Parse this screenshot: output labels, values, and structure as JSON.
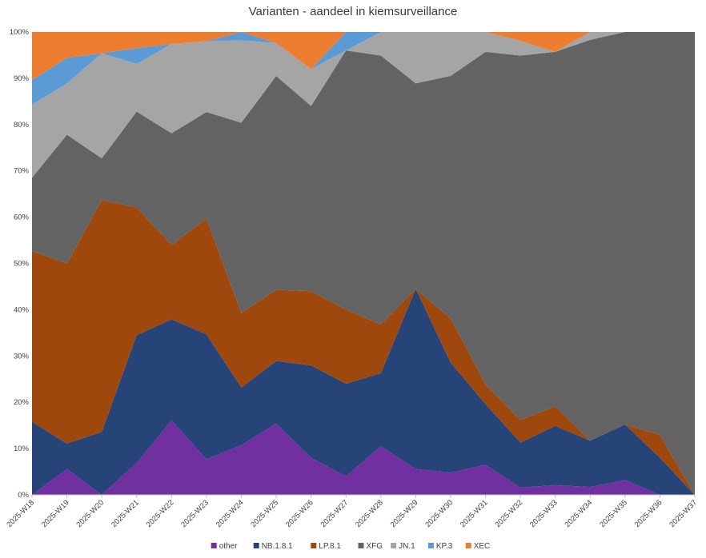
{
  "chart_data": {
    "type": "area",
    "stacked": true,
    "normalized": true,
    "title": "Varianten - aandeel in kiemsurveillance",
    "x": [
      "2025-W18",
      "2025-W19",
      "2025-W20",
      "2025-W21",
      "2025-W22",
      "2025-W23",
      "2025-W24",
      "2025-W25",
      "2025-W26",
      "2025-W27",
      "2025-W28",
      "2025-W29",
      "2025-W30",
      "2025-W31",
      "2025-W32",
      "2025-W33",
      "2025-W34",
      "2025-W35",
      "2025-W36",
      "2025-W37"
    ],
    "ylim": [
      0,
      100
    ],
    "yticks": [
      "0%",
      "10%",
      "20%",
      "30%",
      "40%",
      "50%",
      "60%",
      "70%",
      "80%",
      "90%",
      "100%"
    ],
    "grid": false,
    "legend_position": "bottom",
    "series": [
      {
        "name": "other",
        "color": "#7030a0",
        "values": [
          0,
          5.6,
          0,
          6.9,
          16.1,
          7.7,
          10.7,
          15.4,
          8.0,
          4.0,
          10.5,
          5.6,
          4.8,
          6.5,
          1.6,
          2.1,
          1.7,
          3.2,
          0,
          0
        ]
      },
      {
        "name": "NB.1.8.1",
        "color": "#264478",
        "values": [
          15.8,
          5.5,
          13.6,
          27.6,
          21.8,
          27.0,
          12.5,
          13.5,
          20.0,
          20.0,
          15.8,
          38.9,
          23.8,
          13.1,
          9.7,
          12.8,
          10.0,
          12.0,
          8.0,
          0
        ]
      },
      {
        "name": "LP.8.1",
        "color": "#9e480e",
        "values": [
          36.9,
          38.9,
          50.1,
          27.6,
          16.1,
          25.0,
          16.1,
          15.4,
          16.0,
          16.0,
          10.5,
          0,
          9.5,
          4.3,
          4.9,
          4.2,
          0,
          0,
          5.0,
          0
        ]
      },
      {
        "name": "XFG",
        "color": "#636363",
        "values": [
          15.8,
          27.8,
          9.0,
          20.7,
          24.1,
          23.0,
          41.1,
          46.2,
          40.0,
          56.0,
          58.1,
          44.4,
          52.4,
          71.8,
          78.7,
          76.6,
          86.6,
          84.8,
          87.0,
          100
        ]
      },
      {
        "name": "JN.1",
        "color": "#a5a5a5",
        "values": [
          15.8,
          11.1,
          22.7,
          10.3,
          19.3,
          15.3,
          17.8,
          7.1,
          8.0,
          0,
          5.1,
          11.1,
          9.5,
          4.3,
          3.2,
          0,
          1.7,
          0,
          0,
          0
        ]
      },
      {
        "name": "KP.3",
        "color": "#5b9bd5",
        "values": [
          5.3,
          5.5,
          0,
          3.4,
          0,
          0,
          1.8,
          0,
          0,
          4.0,
          0,
          0,
          0,
          0,
          0,
          0,
          0,
          0,
          0,
          0
        ]
      },
      {
        "name": "XEC",
        "color": "#ed7d31",
        "values": [
          10.4,
          5.6,
          4.6,
          3.5,
          2.6,
          2.0,
          0,
          2.4,
          8.0,
          0,
          0,
          0,
          0,
          0,
          1.9,
          4.3,
          0,
          0,
          0,
          0
        ]
      }
    ]
  }
}
